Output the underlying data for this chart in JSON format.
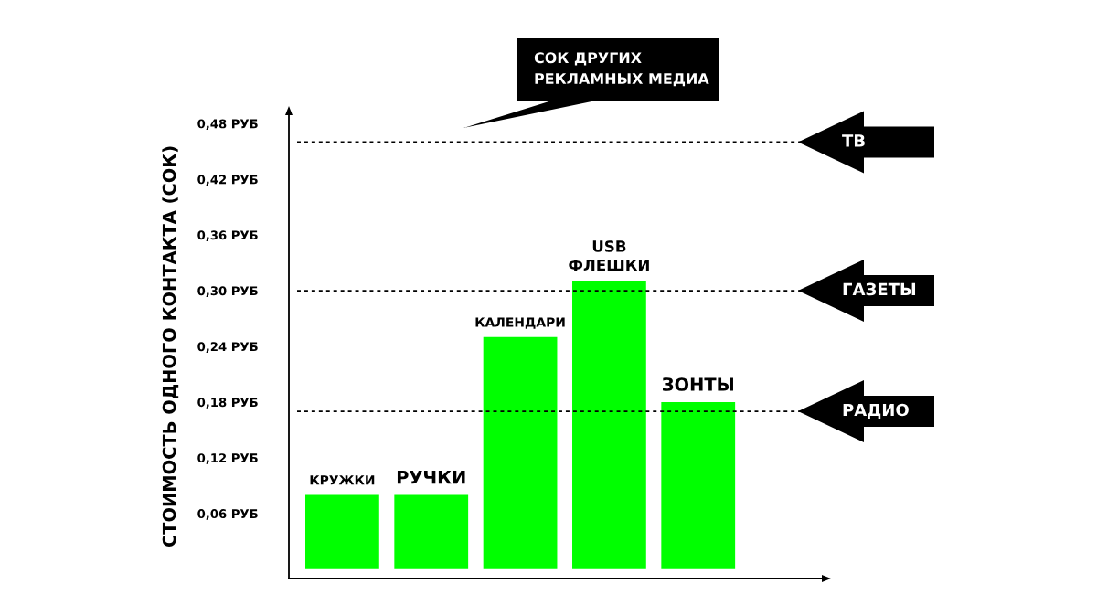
{
  "chart_data": {
    "type": "bar",
    "ylabel": "СТОИМОСТЬ ОДНОГО КОНТАКТА (СОК)",
    "categories": [
      "КРУЖКИ",
      "РУЧКИ",
      "КАЛЕНДАРИ",
      "USB\nФЛЕШКИ",
      "ЗОНТЫ"
    ],
    "values": [
      0.08,
      0.08,
      0.25,
      0.31,
      0.18
    ],
    "color": "#00ff00",
    "ylim": [
      -0.01,
      0.49
    ],
    "yticks": [
      {
        "value": 0.06,
        "label": "0,06 РУБ"
      },
      {
        "value": 0.12,
        "label": "0,12 РУБ"
      },
      {
        "value": 0.18,
        "label": "0,18 РУБ"
      },
      {
        "value": 0.24,
        "label": "0,24 РУБ"
      },
      {
        "value": 0.3,
        "label": "0,30 РУБ"
      },
      {
        "value": 0.36,
        "label": "0,36 РУБ"
      },
      {
        "value": 0.42,
        "label": "0,42 РУБ"
      },
      {
        "value": 0.48,
        "label": "0,48 РУБ"
      }
    ],
    "ref_lines": [
      {
        "axis": "y",
        "value": 0.46,
        "label": "ТВ",
        "color": "#000000",
        "line_style": "dotted"
      },
      {
        "axis": "y",
        "value": 0.3,
        "label": "ГАЗЕТЫ",
        "color": "#000000",
        "line_style": "dotted"
      },
      {
        "axis": "y",
        "value": 0.17,
        "label": "РАДИО",
        "color": "#000000",
        "line_style": "dotted"
      }
    ],
    "annotations": [
      "СОК ДРУГИХ\nРЕКЛАМНЫХ МЕДИА"
    ]
  }
}
